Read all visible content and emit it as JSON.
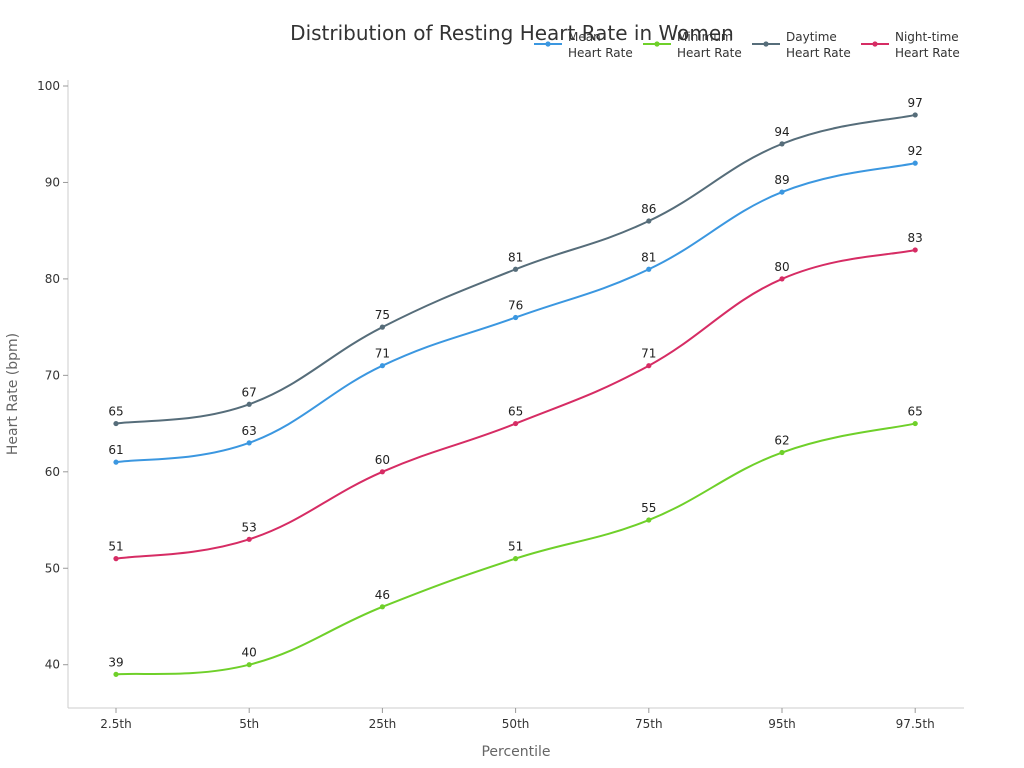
{
  "chart_data": {
    "type": "line",
    "title": "Distribution of Resting Heart Rate in Women",
    "xlabel": "Percentile",
    "ylabel": "Heart Rate (bpm)",
    "categories": [
      "2.5th",
      "5th",
      "25th",
      "50th",
      "75th",
      "95th",
      "97.5th"
    ],
    "ylim": [
      35,
      101
    ],
    "yticks": [
      40,
      50,
      60,
      70,
      80,
      90,
      100
    ],
    "grid": false,
    "legend_position": "top-right",
    "series": [
      {
        "name_lines": [
          "Mean",
          "Heart Rate"
        ],
        "color": "#3b97e0",
        "values": [
          61,
          63,
          71,
          76,
          81,
          89,
          92
        ]
      },
      {
        "name_lines": [
          "Minimum",
          "Heart Rate"
        ],
        "color": "#6fd02a",
        "values": [
          39,
          40,
          46,
          51,
          55,
          62,
          65
        ]
      },
      {
        "name_lines": [
          "Daytime",
          "Heart Rate"
        ],
        "color": "#566d7a",
        "values": [
          65,
          67,
          75,
          81,
          86,
          94,
          97
        ]
      },
      {
        "name_lines": [
          "Night-time",
          "Heart Rate"
        ],
        "color": "#d62c64",
        "values": [
          51,
          53,
          60,
          65,
          71,
          80,
          83
        ]
      }
    ]
  }
}
